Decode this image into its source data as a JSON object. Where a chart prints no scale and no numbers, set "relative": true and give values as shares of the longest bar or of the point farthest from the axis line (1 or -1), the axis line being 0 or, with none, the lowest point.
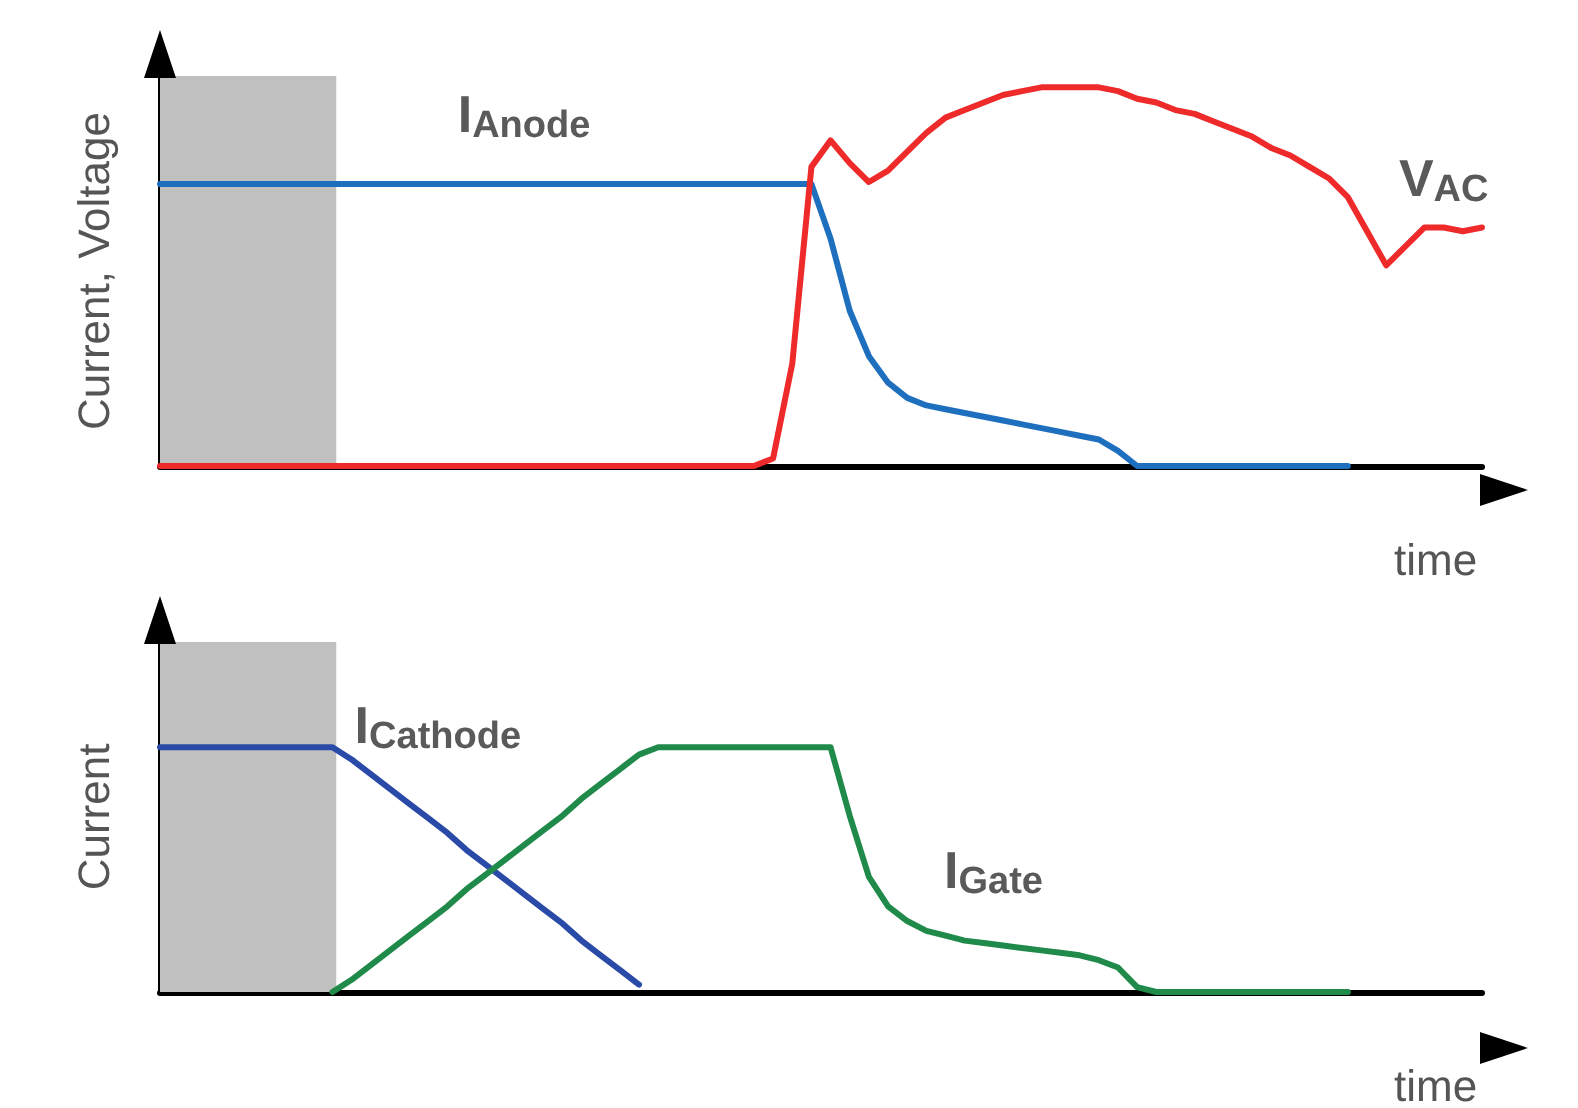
{
  "chart_data": [
    {
      "type": "line",
      "relative": true,
      "xlabel": "time",
      "ylabel": "Current, Voltage",
      "categories": [
        null,
        null,
        null,
        null,
        null,
        null,
        null,
        null,
        null,
        null,
        null,
        null,
        null,
        null,
        null,
        null,
        null,
        null,
        null,
        null,
        null,
        null,
        null,
        null,
        null,
        null,
        null,
        null,
        null,
        null,
        null,
        null,
        null,
        null,
        null,
        null,
        null,
        null,
        null,
        null,
        null,
        null,
        null,
        null,
        null,
        null,
        null,
        null,
        null,
        null,
        null,
        null,
        null,
        null,
        null,
        null,
        null,
        null,
        null,
        null,
        null,
        null,
        null,
        null,
        null,
        null,
        null,
        null,
        null,
        null
      ],
      "series": [
        {
          "name": "I$_{Anode}$",
          "color": "#1f6fbf",
          "values": [
            0.745,
            0.745,
            0.745,
            0.745,
            0.745,
            0.745,
            0.745,
            0.745,
            0.745,
            0.745,
            0.745,
            0.745,
            0.745,
            0.745,
            0.745,
            0.745,
            0.745,
            0.745,
            0.745,
            0.745,
            0.745,
            0.745,
            0.745,
            0.745,
            0.745,
            0.745,
            0.745,
            0.745,
            0.745,
            0.745,
            0.745,
            0.745,
            0.745,
            0.745,
            0.745,
            0.6,
            0.41,
            0.29,
            0.22,
            0.18,
            0.16,
            0.15,
            0.14,
            0.13,
            0.12,
            0.11,
            0.1,
            0.09,
            0.08,
            0.07,
            0.04,
            0,
            0,
            0,
            0,
            0,
            0,
            0,
            0,
            0,
            0,
            0,
            0,
            null,
            null,
            null,
            null,
            null,
            null,
            null
          ]
        },
        {
          "name": "V$_{AC}$",
          "color": "#ee2a2a",
          "values": [
            0,
            0,
            0,
            0,
            0,
            0,
            0,
            0,
            0,
            0,
            0,
            0,
            0,
            0,
            0,
            0,
            0,
            0,
            0,
            0,
            0,
            0,
            0,
            0,
            0,
            0,
            0,
            0,
            0,
            0,
            0,
            0,
            0.02,
            0.27,
            0.79,
            0.86,
            0.8,
            0.75,
            0.78,
            0.83,
            0.88,
            0.92,
            0.94,
            0.96,
            0.98,
            0.99,
            1,
            1,
            1,
            1,
            0.99,
            0.97,
            0.96,
            0.94,
            0.93,
            0.91,
            0.89,
            0.87,
            0.84,
            0.82,
            0.79,
            0.76,
            0.71,
            0.62,
            0.53,
            0.58,
            0.63,
            0.63,
            0.62,
            0.63
          ]
        }
      ]
    },
    {
      "type": "line",
      "relative": true,
      "xlabel": "time",
      "ylabel": "Current",
      "categories": [
        null,
        null,
        null,
        null,
        null,
        null,
        null,
        null,
        null,
        null,
        null,
        null,
        null,
        null,
        null,
        null,
        null,
        null,
        null,
        null,
        null,
        null,
        null,
        null,
        null,
        null,
        null,
        null,
        null,
        null,
        null,
        null,
        null,
        null,
        null,
        null,
        null,
        null,
        null,
        null,
        null,
        null,
        null,
        null,
        null,
        null,
        null,
        null,
        null,
        null,
        null,
        null,
        null,
        null,
        null,
        null,
        null,
        null,
        null,
        null,
        null,
        null,
        null,
        null,
        null,
        null,
        null,
        null,
        null,
        null
      ],
      "series": [
        {
          "name": "I$_{Cathode}$",
          "color": "#2a4aa8",
          "values": [
            1,
            1,
            1,
            1,
            1,
            1,
            1,
            1,
            1,
            1,
            0.95,
            0.89,
            0.83,
            0.77,
            0.71,
            0.65,
            0.58,
            0.52,
            0.46,
            0.4,
            0.34,
            0.28,
            0.21,
            0.15,
            0.09,
            0.03,
            null,
            null,
            null,
            null,
            null,
            null,
            null,
            null,
            null,
            null,
            null,
            null,
            null,
            null,
            null,
            null,
            null,
            null,
            null,
            null,
            null,
            null,
            null,
            null,
            null,
            null,
            null,
            null,
            null,
            null,
            null,
            null,
            null,
            null,
            null,
            null,
            null,
            null,
            null,
            null,
            null,
            null,
            null,
            null
          ]
        },
        {
          "name": "I$_{Gate}$",
          "color": "#1f8a4a",
          "values": [
            null,
            null,
            null,
            null,
            null,
            null,
            null,
            null,
            null,
            0,
            0.05,
            0.11,
            0.17,
            0.23,
            0.29,
            0.35,
            0.42,
            0.48,
            0.54,
            0.6,
            0.66,
            0.72,
            0.79,
            0.85,
            0.91,
            0.97,
            1,
            1,
            1,
            1,
            1,
            1,
            1,
            1,
            1,
            1,
            0.72,
            0.47,
            0.35,
            0.29,
            0.25,
            0.23,
            0.21,
            0.2,
            0.19,
            0.18,
            0.17,
            0.16,
            0.15,
            0.13,
            0.1,
            0.02,
            0,
            0,
            0,
            0,
            0,
            0,
            0,
            0,
            0,
            0,
            0,
            null,
            null,
            null,
            null,
            null,
            null,
            null
          ]
        }
      ]
    }
  ]
}
